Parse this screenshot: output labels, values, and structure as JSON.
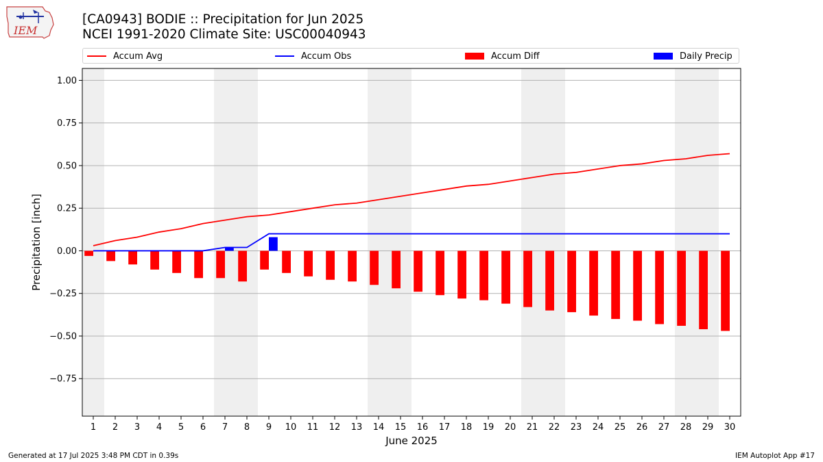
{
  "logo": {
    "text": "IEM"
  },
  "title_line1": "[CA0943] BODIE :: Precipitation for Jun 2025",
  "title_line2": "NCEI 1991-2020 Climate Site: USC00040943",
  "legend": [
    {
      "label": "Accum Avg",
      "kind": "line",
      "color": "#ff0000"
    },
    {
      "label": "Accum Obs",
      "kind": "line",
      "color": "#0000ff"
    },
    {
      "label": "Accum Diff",
      "kind": "bar",
      "color": "#ff0000"
    },
    {
      "label": "Daily Precip",
      "kind": "bar",
      "color": "#0000ff"
    }
  ],
  "footer_left": "Generated at 17 Jul 2025 3:48 PM CDT in 0.39s",
  "footer_right": "IEM Autoplot App #17",
  "chart_data": {
    "type": "bar",
    "xlabel": "June 2025",
    "ylabel": "Precipitation [inch]",
    "x": [
      1,
      2,
      3,
      4,
      5,
      6,
      7,
      8,
      9,
      10,
      11,
      12,
      13,
      14,
      15,
      16,
      17,
      18,
      19,
      20,
      21,
      22,
      23,
      24,
      25,
      26,
      27,
      28,
      29,
      30
    ],
    "xlim": [
      0.5,
      30.5
    ],
    "ylim": [
      -0.97,
      1.07
    ],
    "yticks": [
      1.0,
      0.75,
      0.5,
      0.25,
      0.0,
      -0.25,
      -0.5,
      -0.75
    ],
    "ytick_labels": [
      "1.00",
      "0.75",
      "0.50",
      "0.25",
      "0.00",
      "−0.25",
      "−0.50",
      "−0.75"
    ],
    "grid": "horizontal",
    "legend_position": "top",
    "weekend_shading": {
      "color": "#efefef",
      "spans": [
        [
          0.5,
          1.5
        ],
        [
          6.5,
          8.5
        ],
        [
          13.5,
          15.5
        ],
        [
          20.5,
          22.5
        ],
        [
          27.5,
          29.5
        ]
      ]
    },
    "series": [
      {
        "name": "Accum Avg",
        "kind": "line",
        "color": "#ff0000",
        "values": [
          0.03,
          0.06,
          0.08,
          0.11,
          0.13,
          0.16,
          0.18,
          0.2,
          0.21,
          0.23,
          0.25,
          0.27,
          0.28,
          0.3,
          0.32,
          0.34,
          0.36,
          0.38,
          0.39,
          0.41,
          0.43,
          0.45,
          0.46,
          0.48,
          0.5,
          0.51,
          0.53,
          0.54,
          0.56,
          0.57
        ]
      },
      {
        "name": "Accum Obs",
        "kind": "line",
        "color": "#0000ff",
        "values": [
          0.0,
          0.0,
          0.0,
          0.0,
          0.0,
          0.0,
          0.02,
          0.02,
          0.1,
          0.1,
          0.1,
          0.1,
          0.1,
          0.1,
          0.1,
          0.1,
          0.1,
          0.1,
          0.1,
          0.1,
          0.1,
          0.1,
          0.1,
          0.1,
          0.1,
          0.1,
          0.1,
          0.1,
          0.1,
          0.1
        ]
      },
      {
        "name": "Accum Diff",
        "kind": "bar",
        "color": "#ff0000",
        "offset": -0.2,
        "values": [
          -0.03,
          -0.06,
          -0.08,
          -0.11,
          -0.13,
          -0.16,
          -0.16,
          -0.18,
          -0.11,
          -0.13,
          -0.15,
          -0.17,
          -0.18,
          -0.2,
          -0.22,
          -0.24,
          -0.26,
          -0.28,
          -0.29,
          -0.31,
          -0.33,
          -0.35,
          -0.36,
          -0.38,
          -0.4,
          -0.41,
          -0.43,
          -0.44,
          -0.46,
          -0.47
        ]
      },
      {
        "name": "Daily Precip",
        "kind": "bar",
        "color": "#0000ff",
        "offset": 0.2,
        "values": [
          0,
          0,
          0,
          0,
          0,
          0,
          0.02,
          0,
          0.08,
          0,
          0,
          0,
          0,
          0,
          0,
          0,
          0,
          0,
          0,
          0,
          0,
          0,
          0,
          0,
          0,
          0,
          0,
          0,
          0,
          0
        ]
      }
    ]
  }
}
